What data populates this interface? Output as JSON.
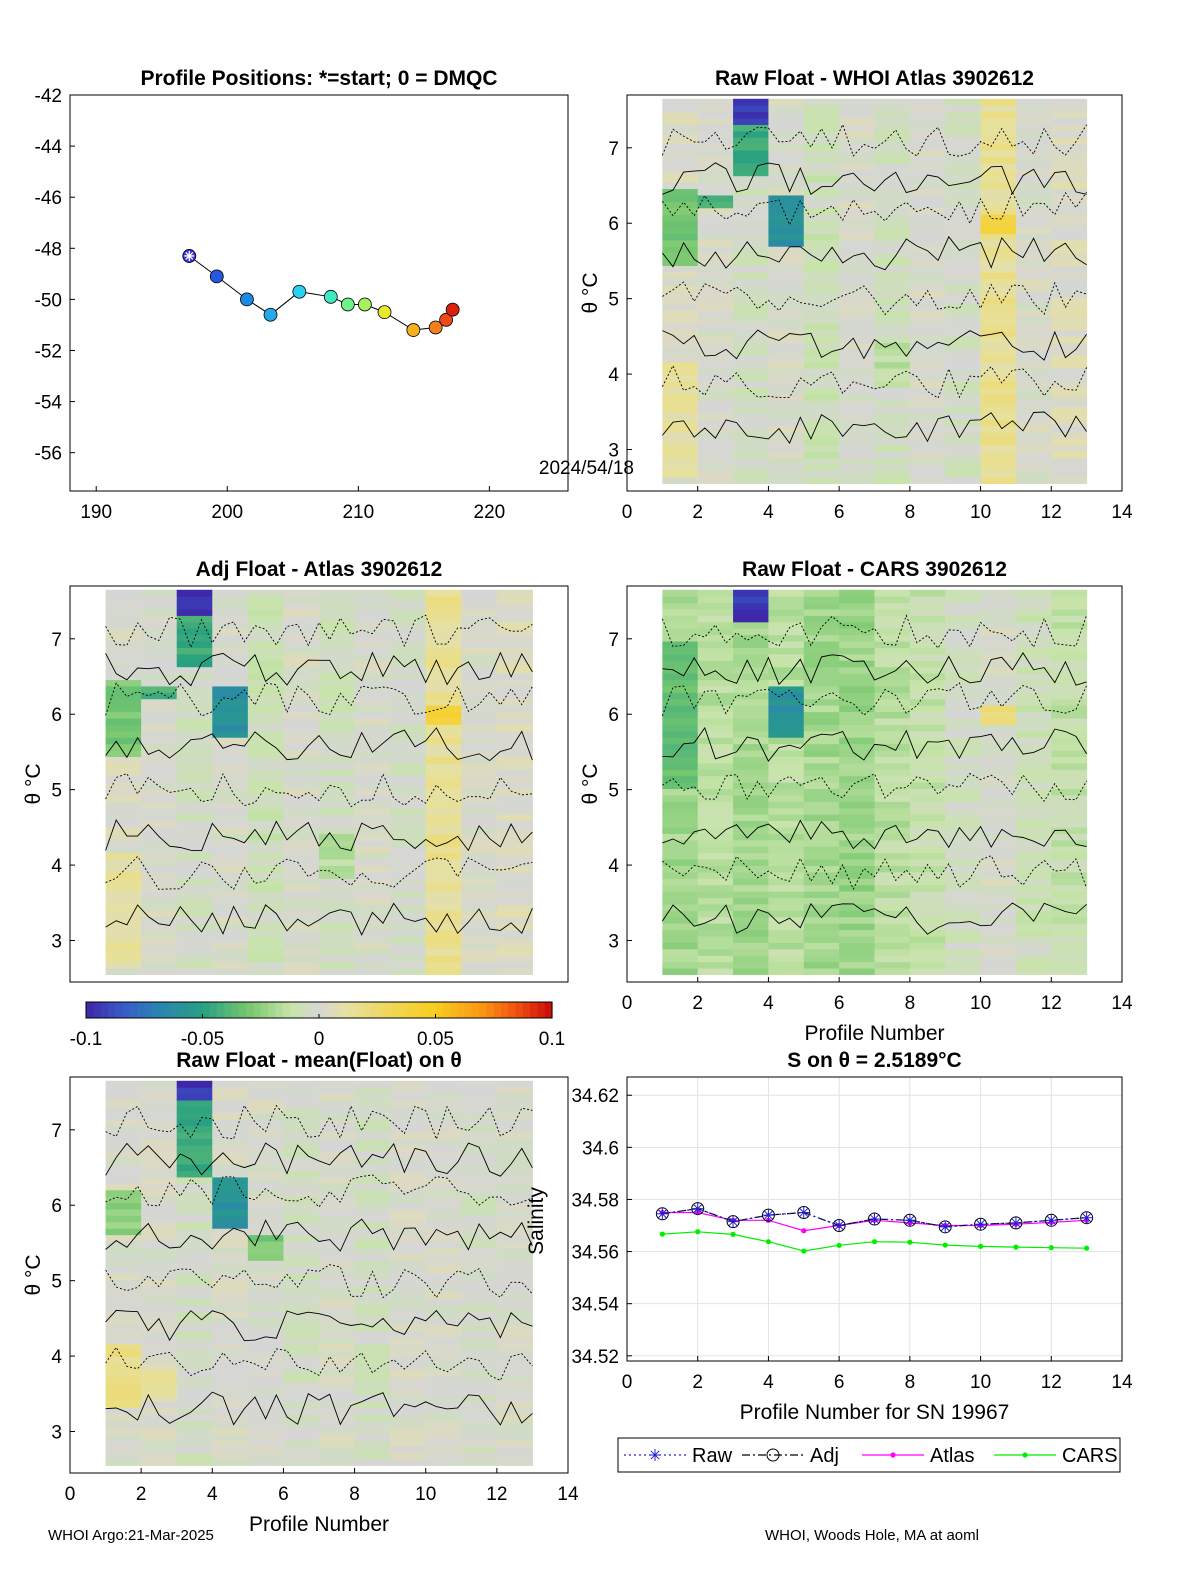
{
  "chart_data": [
    {
      "type": "scatter",
      "panel": "map",
      "title": "Profile Positions: *=start; 0 = DMQC",
      "xlim": [
        188,
        226
      ],
      "ylim": [
        -57.5,
        -42
      ],
      "xticks": [
        "190",
        "200",
        "210",
        "220"
      ],
      "yticks": [
        "-42",
        "-44",
        "-46",
        "-48",
        "-50",
        "-52",
        "-54",
        "-56"
      ],
      "annotation": "2024/54/18",
      "points": [
        {
          "x": 197.1,
          "y": -48.3,
          "color": "#3b33d6",
          "start": true
        },
        {
          "x": 199.2,
          "y": -49.1,
          "color": "#2259e0"
        },
        {
          "x": 201.5,
          "y": -50.0,
          "color": "#1e88e5"
        },
        {
          "x": 203.3,
          "y": -50.6,
          "color": "#26a9e8"
        },
        {
          "x": 205.5,
          "y": -49.7,
          "color": "#2ad0f0"
        },
        {
          "x": 207.9,
          "y": -49.9,
          "color": "#40e8c0"
        },
        {
          "x": 209.2,
          "y": -50.2,
          "color": "#6ef08a"
        },
        {
          "x": 210.5,
          "y": -50.2,
          "color": "#a8f060"
        },
        {
          "x": 212.0,
          "y": -50.5,
          "color": "#e8e830"
        },
        {
          "x": 214.2,
          "y": -51.2,
          "color": "#f5b120"
        },
        {
          "x": 215.9,
          "y": -51.1,
          "color": "#f57f1c"
        },
        {
          "x": 216.7,
          "y": -50.8,
          "color": "#ee4a15"
        },
        {
          "x": 217.2,
          "y": -50.4,
          "color": "#d9200f"
        }
      ]
    },
    {
      "type": "heatmap",
      "panel": "raw-whoi",
      "title": "Raw Float - WHOI Atlas  3902612",
      "xlabel": "",
      "ylabel": "θ °C",
      "xlim": [
        0,
        14
      ],
      "ylim": [
        2.45,
        7.7
      ],
      "xticks": [
        "0",
        "2",
        "4",
        "6",
        "8",
        "10",
        "12",
        "14"
      ],
      "yticks": [
        "3",
        "4",
        "5",
        "6",
        "7"
      ],
      "columns": [
        {
          "x0": 1,
          "x1": 2,
          "base": 0.002,
          "patches": [
            {
              "y0": 5.4,
              "y1": 6.5,
              "v": -0.03
            },
            {
              "y0": 2.6,
              "y1": 4.2,
              "v": 0.012
            }
          ]
        },
        {
          "x0": 2,
          "x1": 3,
          "base": 0.0,
          "patches": [
            {
              "y0": 6.2,
              "y1": 6.4,
              "v": -0.04
            }
          ]
        },
        {
          "x0": 3,
          "x1": 4,
          "base": -0.005,
          "patches": [
            {
              "y0": 7.35,
              "y1": 7.7,
              "v": -0.095
            },
            {
              "y0": 6.6,
              "y1": 7.35,
              "v": -0.045
            }
          ]
        },
        {
          "x0": 4,
          "x1": 5,
          "base": 0.0,
          "patches": [
            {
              "y0": 5.7,
              "y1": 6.4,
              "v": -0.06
            }
          ]
        },
        {
          "x0": 5,
          "x1": 6,
          "base": -0.008,
          "patches": []
        },
        {
          "x0": 6,
          "x1": 7,
          "base": 0.0,
          "patches": []
        },
        {
          "x0": 7,
          "x1": 8,
          "base": -0.006,
          "patches": [
            {
              "y0": 3.8,
              "y1": 4.4,
              "v": -0.015
            }
          ]
        },
        {
          "x0": 8,
          "x1": 9,
          "base": 0.0,
          "patches": []
        },
        {
          "x0": 9,
          "x1": 10,
          "base": -0.004,
          "patches": []
        },
        {
          "x0": 10,
          "x1": 11,
          "base": 0.015,
          "patches": [
            {
              "y0": 5.9,
              "y1": 6.1,
              "v": 0.04
            }
          ]
        },
        {
          "x0": 11,
          "x1": 12,
          "base": 0.0,
          "patches": []
        },
        {
          "x0": 12,
          "x1": 13,
          "base": 0.004,
          "patches": []
        }
      ]
    },
    {
      "type": "heatmap",
      "panel": "adj-atlas",
      "title": "Adj Float - Atlas  3902612",
      "xlabel": "",
      "ylabel": "θ °C",
      "xlim": [
        0,
        14
      ],
      "ylim": [
        2.45,
        7.7
      ],
      "xticks": [],
      "yticks": [
        "3",
        "4",
        "5",
        "6",
        "7"
      ],
      "columns": [
        {
          "x0": 1,
          "x1": 2,
          "base": 0.002,
          "patches": [
            {
              "y0": 5.4,
              "y1": 6.5,
              "v": -0.03
            },
            {
              "y0": 2.6,
              "y1": 4.2,
              "v": 0.012
            }
          ]
        },
        {
          "x0": 2,
          "x1": 3,
          "base": 0.0,
          "patches": [
            {
              "y0": 6.2,
              "y1": 6.4,
              "v": -0.04
            }
          ]
        },
        {
          "x0": 3,
          "x1": 4,
          "base": -0.005,
          "patches": [
            {
              "y0": 7.35,
              "y1": 7.7,
              "v": -0.095
            },
            {
              "y0": 6.6,
              "y1": 7.35,
              "v": -0.045
            }
          ]
        },
        {
          "x0": 4,
          "x1": 5,
          "base": 0.0,
          "patches": [
            {
              "y0": 5.7,
              "y1": 6.4,
              "v": -0.06
            }
          ]
        },
        {
          "x0": 5,
          "x1": 6,
          "base": -0.008,
          "patches": []
        },
        {
          "x0": 6,
          "x1": 7,
          "base": 0.0,
          "patches": []
        },
        {
          "x0": 7,
          "x1": 8,
          "base": -0.006,
          "patches": [
            {
              "y0": 3.8,
              "y1": 4.4,
              "v": -0.015
            }
          ]
        },
        {
          "x0": 8,
          "x1": 9,
          "base": 0.0,
          "patches": []
        },
        {
          "x0": 9,
          "x1": 10,
          "base": -0.004,
          "patches": []
        },
        {
          "x0": 10,
          "x1": 11,
          "base": 0.015,
          "patches": [
            {
              "y0": 5.9,
              "y1": 6.1,
              "v": 0.04
            }
          ]
        },
        {
          "x0": 11,
          "x1": 12,
          "base": 0.0,
          "patches": []
        },
        {
          "x0": 12,
          "x1": 13,
          "base": 0.004,
          "patches": []
        }
      ]
    },
    {
      "type": "heatmap",
      "panel": "raw-cars",
      "title": "Raw Float - CARS  3902612",
      "xlabel": "Profile Number",
      "ylabel": "θ °C",
      "xlim": [
        0,
        14
      ],
      "ylim": [
        2.45,
        7.7
      ],
      "xticks": [
        "0",
        "2",
        "4",
        "6",
        "8",
        "10",
        "12",
        "14"
      ],
      "yticks": [
        "3",
        "4",
        "5",
        "6",
        "7"
      ],
      "columns": [
        {
          "x0": 1,
          "x1": 2,
          "base": -0.02,
          "patches": [
            {
              "y0": 5.0,
              "y1": 7.0,
              "v": -0.035
            }
          ]
        },
        {
          "x0": 2,
          "x1": 3,
          "base": -0.015,
          "patches": []
        },
        {
          "x0": 3,
          "x1": 4,
          "base": -0.02,
          "patches": [
            {
              "y0": 7.2,
              "y1": 7.7,
              "v": -0.095
            }
          ]
        },
        {
          "x0": 4,
          "x1": 5,
          "base": -0.015,
          "patches": [
            {
              "y0": 5.7,
              "y1": 6.4,
              "v": -0.06
            }
          ]
        },
        {
          "x0": 5,
          "x1": 6,
          "base": -0.02,
          "patches": []
        },
        {
          "x0": 6,
          "x1": 7,
          "base": -0.022,
          "patches": []
        },
        {
          "x0": 7,
          "x1": 8,
          "base": -0.015,
          "patches": []
        },
        {
          "x0": 8,
          "x1": 9,
          "base": -0.012,
          "patches": []
        },
        {
          "x0": 9,
          "x1": 10,
          "base": -0.005,
          "patches": []
        },
        {
          "x0": 10,
          "x1": 11,
          "base": 0.0,
          "patches": [
            {
              "y0": 5.9,
              "y1": 6.1,
              "v": 0.02
            }
          ]
        },
        {
          "x0": 11,
          "x1": 12,
          "base": -0.008,
          "patches": []
        },
        {
          "x0": 12,
          "x1": 13,
          "base": -0.012,
          "patches": []
        }
      ]
    },
    {
      "type": "heatmap",
      "panel": "raw-mean",
      "title": "Raw Float - mean(Float) on θ",
      "xlabel": "Profile Number",
      "ylabel": "θ °C",
      "xlim": [
        0,
        14
      ],
      "ylim": [
        2.45,
        7.7
      ],
      "xticks": [
        "0",
        "2",
        "4",
        "6",
        "8",
        "10",
        "12",
        "14"
      ],
      "yticks": [
        "3",
        "4",
        "5",
        "6",
        "7"
      ],
      "columns": [
        {
          "x0": 1,
          "x1": 2,
          "base": 0.0,
          "patches": [
            {
              "y0": 3.3,
              "y1": 4.2,
              "v": 0.018
            },
            {
              "y0": 5.6,
              "y1": 6.2,
              "v": -0.025
            }
          ]
        },
        {
          "x0": 2,
          "x1": 3,
          "base": 0.0,
          "patches": [
            {
              "y0": 3.4,
              "y1": 3.9,
              "v": 0.01
            }
          ]
        },
        {
          "x0": 3,
          "x1": 4,
          "base": -0.005,
          "patches": [
            {
              "y0": 7.4,
              "y1": 7.7,
              "v": -0.095
            },
            {
              "y0": 6.4,
              "y1": 7.4,
              "v": -0.045
            }
          ]
        },
        {
          "x0": 4,
          "x1": 5,
          "base": 0.0,
          "patches": [
            {
              "y0": 5.7,
              "y1": 6.4,
              "v": -0.06
            }
          ]
        },
        {
          "x0": 5,
          "x1": 6,
          "base": 0.0,
          "patches": [
            {
              "y0": 5.3,
              "y1": 5.6,
              "v": -0.03
            }
          ]
        },
        {
          "x0": 6,
          "x1": 7,
          "base": -0.004,
          "patches": []
        },
        {
          "x0": 7,
          "x1": 8,
          "base": 0.0,
          "patches": []
        },
        {
          "x0": 8,
          "x1": 9,
          "base": -0.005,
          "patches": []
        },
        {
          "x0": 9,
          "x1": 10,
          "base": 0.0,
          "patches": []
        },
        {
          "x0": 10,
          "x1": 11,
          "base": 0.0,
          "patches": []
        },
        {
          "x0": 11,
          "x1": 12,
          "base": -0.003,
          "patches": []
        },
        {
          "x0": 12,
          "x1": 13,
          "base": 0.0,
          "patches": []
        }
      ]
    },
    {
      "type": "line",
      "panel": "salinity",
      "title": "S on θ = 2.5189°C",
      "xlabel": "Profile Number for SN 19967",
      "ylabel": "Salinity",
      "xlim": [
        0,
        14
      ],
      "ylim": [
        34.518,
        34.627
      ],
      "xticks": [
        "0",
        "2",
        "4",
        "6",
        "8",
        "10",
        "12",
        "14"
      ],
      "yticks": [
        "34.52",
        "34.54",
        "34.56",
        "34.58",
        "34.6",
        "34.62"
      ],
      "grid": true,
      "legend_position": "bottom",
      "x": [
        1,
        2,
        3,
        4,
        5,
        6,
        7,
        8,
        9,
        10,
        11,
        12,
        13
      ],
      "series": [
        {
          "name": "Raw",
          "color": "#2020d0",
          "values": [
            34.5745,
            34.5765,
            34.5715,
            34.574,
            34.575,
            34.57,
            34.5725,
            34.572,
            34.5695,
            34.5705,
            34.571,
            34.572,
            34.573
          ]
        },
        {
          "name": "Adj",
          "color": "#000000",
          "values": [
            34.5745,
            34.5765,
            34.5715,
            34.574,
            34.575,
            34.57,
            34.5725,
            34.572,
            34.5695,
            34.5705,
            34.571,
            34.572,
            34.573
          ]
        },
        {
          "name": "Atlas",
          "color": "#ff00ff",
          "values": [
            34.575,
            34.575,
            34.572,
            34.572,
            34.568,
            34.57,
            34.572,
            34.571,
            34.57,
            34.57,
            34.5705,
            34.5712,
            34.572
          ]
        },
        {
          "name": "CARS",
          "color": "#00ee00",
          "values": [
            34.5667,
            34.5676,
            34.5666,
            34.5638,
            34.5602,
            34.5624,
            34.5638,
            34.5636,
            34.5625,
            34.562,
            34.5617,
            34.5615,
            34.5613
          ]
        }
      ]
    }
  ],
  "colorbar": {
    "ticks": [
      "-0.1",
      "-0.05",
      "0",
      "0.05",
      "0.1"
    ],
    "values": [
      -0.1,
      -0.05,
      0,
      0.05,
      0.1
    ],
    "range": [
      -0.1,
      0.1
    ]
  },
  "footer": {
    "left": "WHOI Argo:21-Mar-2025",
    "right": "WHOI, Woods Hole, MA at aoml"
  }
}
